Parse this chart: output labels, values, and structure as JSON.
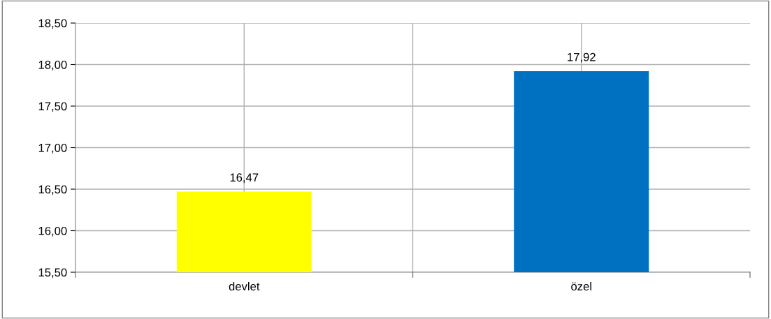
{
  "chart_data": {
    "type": "bar",
    "categories": [
      "devlet",
      "özel"
    ],
    "values": [
      16.47,
      17.92
    ],
    "colors": [
      "#ffff00",
      "#0070c0"
    ],
    "value_labels": [
      "16,47",
      "17,92"
    ],
    "ylim": [
      15.5,
      18.5
    ],
    "yticks": [
      {
        "value": 15.5,
        "label": "15,50"
      },
      {
        "value": 16.0,
        "label": "16,00"
      },
      {
        "value": 16.5,
        "label": "16,50"
      },
      {
        "value": 17.0,
        "label": "17,00"
      },
      {
        "value": 17.5,
        "label": "17,50"
      },
      {
        "value": 18.0,
        "label": "18,00"
      },
      {
        "value": 18.5,
        "label": "18,50"
      }
    ],
    "grid": true,
    "legend": false
  }
}
